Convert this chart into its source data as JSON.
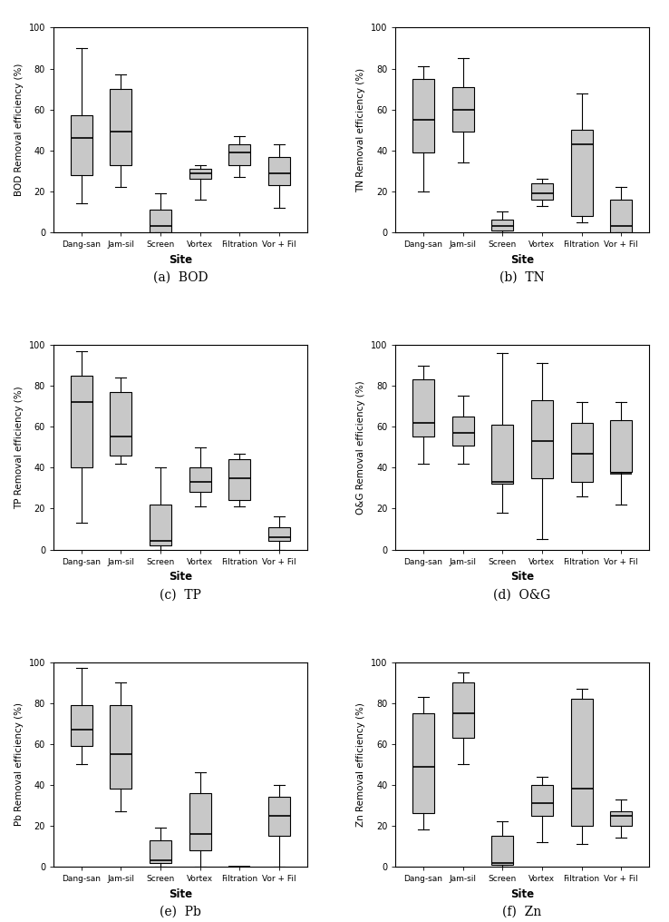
{
  "categories": [
    "Dang-san",
    "Jam-sil",
    "Screen",
    "Vortex",
    "Filtration",
    "Vor + Fil"
  ],
  "subplots": [
    {
      "label": "(a)  BOD",
      "ylabel": "BOD Removal efficiency (%)",
      "ylim": [
        0,
        100
      ],
      "yticks": [
        0,
        20,
        40,
        60,
        80,
        100
      ],
      "boxes": [
        {
          "whislo": 14,
          "q1": 28,
          "med": 46,
          "q3": 57,
          "whishi": 90
        },
        {
          "whislo": 22,
          "q1": 33,
          "med": 49,
          "q3": 70,
          "whishi": 77
        },
        {
          "whislo": 0,
          "q1": 0,
          "med": 3,
          "q3": 11,
          "whishi": 19
        },
        {
          "whislo": 16,
          "q1": 26,
          "med": 29,
          "q3": 31,
          "whishi": 33
        },
        {
          "whislo": 27,
          "q1": 33,
          "med": 39,
          "q3": 43,
          "whishi": 47
        },
        {
          "whislo": 12,
          "q1": 23,
          "med": 29,
          "q3": 37,
          "whishi": 43
        }
      ]
    },
    {
      "label": "(b)  TN",
      "ylabel": "TN Removal efficiency (%)",
      "ylim": [
        0,
        100
      ],
      "yticks": [
        0,
        20,
        40,
        60,
        80,
        100
      ],
      "boxes": [
        {
          "whislo": 20,
          "q1": 39,
          "med": 55,
          "q3": 75,
          "whishi": 81
        },
        {
          "whislo": 34,
          "q1": 49,
          "med": 60,
          "q3": 71,
          "whishi": 85
        },
        {
          "whislo": 0,
          "q1": 1,
          "med": 3,
          "q3": 6,
          "whishi": 10
        },
        {
          "whislo": 13,
          "q1": 16,
          "med": 19,
          "q3": 24,
          "whishi": 26
        },
        {
          "whislo": 5,
          "q1": 8,
          "med": 43,
          "q3": 50,
          "whishi": 68
        },
        {
          "whislo": 0,
          "q1": 0,
          "med": 3,
          "q3": 16,
          "whishi": 22
        }
      ]
    },
    {
      "label": "(c)  TP",
      "ylabel": "TP Removal efficiency (%)",
      "ylim": [
        0,
        100
      ],
      "yticks": [
        0,
        20,
        40,
        60,
        80,
        100
      ],
      "boxes": [
        {
          "whislo": 13,
          "q1": 40,
          "med": 72,
          "q3": 85,
          "whishi": 97
        },
        {
          "whislo": 42,
          "q1": 46,
          "med": 55,
          "q3": 77,
          "whishi": 84
        },
        {
          "whislo": 0,
          "q1": 2,
          "med": 4,
          "q3": 22,
          "whishi": 40
        },
        {
          "whislo": 21,
          "q1": 28,
          "med": 33,
          "q3": 40,
          "whishi": 50
        },
        {
          "whislo": 21,
          "q1": 24,
          "med": 35,
          "q3": 44,
          "whishi": 47
        },
        {
          "whislo": 0,
          "q1": 4,
          "med": 6,
          "q3": 11,
          "whishi": 16
        }
      ]
    },
    {
      "label": "(d)  O&G",
      "ylabel": "O&G Removal efficiency (%)",
      "ylim": [
        0,
        100
      ],
      "yticks": [
        0,
        20,
        40,
        60,
        80,
        100
      ],
      "boxes": [
        {
          "whislo": 42,
          "q1": 55,
          "med": 62,
          "q3": 83,
          "whishi": 90
        },
        {
          "whislo": 42,
          "q1": 51,
          "med": 57,
          "q3": 65,
          "whishi": 75
        },
        {
          "whislo": 18,
          "q1": 32,
          "med": 33,
          "q3": 61,
          "whishi": 96
        },
        {
          "whislo": 5,
          "q1": 35,
          "med": 53,
          "q3": 73,
          "whishi": 91
        },
        {
          "whislo": 26,
          "q1": 33,
          "med": 47,
          "q3": 62,
          "whishi": 72
        },
        {
          "whislo": 22,
          "q1": 38,
          "med": 37,
          "q3": 63,
          "whishi": 72
        }
      ]
    },
    {
      "label": "(e)  Pb",
      "ylabel": "Pb Removal efficiency (%)",
      "ylim": [
        0,
        100
      ],
      "yticks": [
        0,
        20,
        40,
        60,
        80,
        100
      ],
      "boxes": [
        {
          "whislo": 50,
          "q1": 59,
          "med": 67,
          "q3": 79,
          "whishi": 97
        },
        {
          "whislo": 27,
          "q1": 38,
          "med": 55,
          "q3": 79,
          "whishi": 90
        },
        {
          "whislo": 0,
          "q1": 2,
          "med": 3,
          "q3": 13,
          "whishi": 19
        },
        {
          "whislo": 0,
          "q1": 8,
          "med": 16,
          "q3": 36,
          "whishi": 46
        },
        {
          "whislo": 0,
          "q1": 0,
          "med": 0,
          "q3": 0,
          "whishi": 0
        },
        {
          "whislo": 0,
          "q1": 15,
          "med": 25,
          "q3": 34,
          "whishi": 40
        }
      ]
    },
    {
      "label": "(f)  Zn",
      "ylabel": "Zn Removal efficiency (%)",
      "ylim": [
        0,
        100
      ],
      "yticks": [
        0,
        20,
        40,
        60,
        80,
        100
      ],
      "boxes": [
        {
          "whislo": 18,
          "q1": 26,
          "med": 49,
          "q3": 75,
          "whishi": 83
        },
        {
          "whislo": 50,
          "q1": 63,
          "med": 75,
          "q3": 90,
          "whishi": 95
        },
        {
          "whislo": 0,
          "q1": 1,
          "med": 2,
          "q3": 15,
          "whishi": 22
        },
        {
          "whislo": 12,
          "q1": 25,
          "med": 31,
          "q3": 40,
          "whishi": 44
        },
        {
          "whislo": 11,
          "q1": 20,
          "med": 38,
          "q3": 82,
          "whishi": 87
        },
        {
          "whislo": 14,
          "q1": 20,
          "med": 25,
          "q3": 27,
          "whishi": 33
        }
      ]
    }
  ],
  "box_facecolor": "#c8c8c8",
  "box_edgecolor": "#000000",
  "median_color": "#000000",
  "whisker_color": "#000000",
  "cap_color": "#000000",
  "xlabel": "Site",
  "background_color": "#ffffff",
  "figure_facecolor": "#ffffff",
  "outer_border_color": "#000000"
}
